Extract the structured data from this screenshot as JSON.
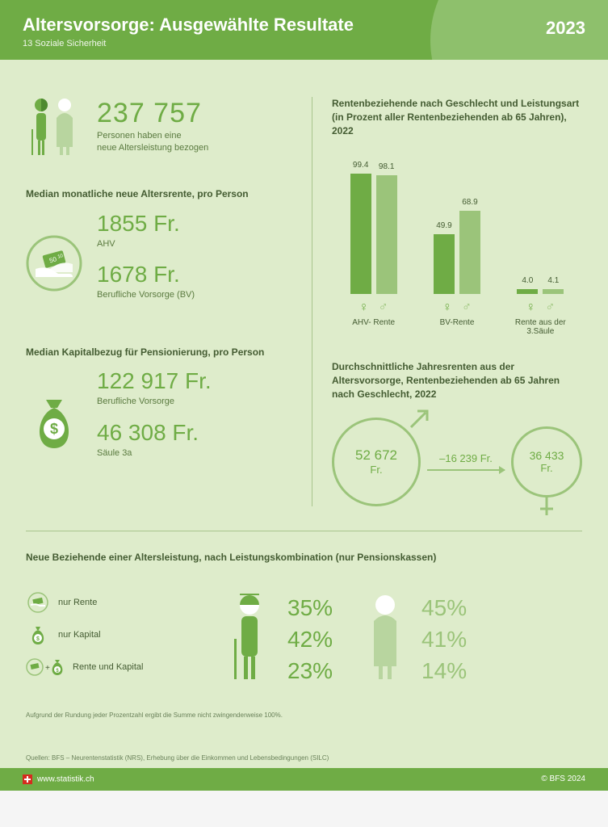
{
  "header": {
    "title": "Altersvorsorge: Ausgewählte Resultate",
    "subtitle": "13 Soziale Sicherheit",
    "year": "2023"
  },
  "colors": {
    "primary": "#6fac45",
    "secondary": "#9bc47a",
    "background": "#deeccb",
    "text_dark": "#445c32"
  },
  "total_persons": {
    "value": "237 757",
    "label": "Personen haben eine\nneue Altersleistung bezogen"
  },
  "median_rent": {
    "title": "Median monatliche neue Altersrente, pro Person",
    "ahv": {
      "value": "1855 Fr.",
      "label": "AHV"
    },
    "bv": {
      "value": "1678 Fr.",
      "label": "Berufliche Vorsorge (BV)"
    }
  },
  "median_capital": {
    "title": "Median Kapitalbezug für Pensionierung, pro Person",
    "bv": {
      "value": "122 917 Fr.",
      "label": "Berufliche Vorsorge"
    },
    "s3a": {
      "value": "46 308 Fr.",
      "label": "Säule 3a"
    }
  },
  "barchart": {
    "title": "Rentenbeziehende nach Geschlecht und Leistungsart (in Prozent aller Rentenbeziehenden ab 65 Jahren), 2022",
    "ymax": 100,
    "groups": [
      {
        "label": "AHV- Rente",
        "f": 99.4,
        "m": 98.1
      },
      {
        "label": "BV-Rente",
        "f": 49.9,
        "m": 68.9
      },
      {
        "label": "Rente aus der 3.Säule",
        "f": 4.0,
        "m": 4.1
      }
    ],
    "color_f": "#6fac45",
    "color_m": "#9bc47a"
  },
  "avg_annual": {
    "title": "Durchschnittliche Jahresrenten aus der Altersvorsorge, Rentenbeziehenden ab 65 Jahren nach Geschlecht, 2022",
    "male": {
      "value": "52 672",
      "unit": "Fr."
    },
    "diff": "–16 239 Fr.",
    "female": {
      "value": "36 433",
      "unit": "Fr."
    }
  },
  "combination": {
    "title": "Neue Beziehende einer Altersleistung, nach Leistungskombination (nur Pensionskassen)",
    "legend": [
      {
        "label": "nur Rente"
      },
      {
        "label": "nur Kapital"
      },
      {
        "label": "Rente und Kapital"
      }
    ],
    "male": [
      "35%",
      "42%",
      "23%"
    ],
    "female": [
      "45%",
      "41%",
      "14%"
    ],
    "footnote": "Aufgrund der Rundung jeder Prozentzahl ergibt die Summe nicht zwingenderweise 100%."
  },
  "sources": "Quellen: BFS – Neurentenstatistik (NRS), Erhebung über die Einkommen und Lebensbedingungen (SILC)",
  "footer": {
    "url": "www.statistik.ch",
    "copyright": "© BFS 2024"
  }
}
